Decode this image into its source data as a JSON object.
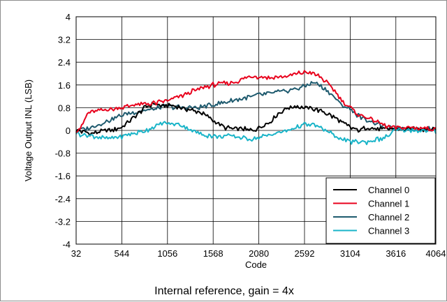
{
  "chart_data": {
    "type": "line",
    "xlabel": "Code",
    "ylabel": "Voltage Output INL (LSB)",
    "caption": "Internal reference, gain = 4x",
    "xlim": [
      32,
      4064
    ],
    "ylim": [
      -4,
      4
    ],
    "x_ticks": [
      32,
      544,
      1056,
      1568,
      2080,
      2592,
      3104,
      3616,
      4064
    ],
    "x_tick_labels": [
      "32",
      "544",
      "1056",
      "1568",
      "2080",
      "2592",
      "3104",
      "3616",
      "4064"
    ],
    "y_ticks": [
      4,
      3.2,
      2.4,
      1.6,
      0.8,
      0,
      -0.8,
      -1.6,
      -2.4,
      -3.2,
      -4
    ],
    "y_tick_labels": [
      "4",
      "3.2",
      "2.4",
      "1.6",
      "0.8",
      "0",
      "-0.8",
      "-1.6",
      "-2.4",
      "-3.2",
      "-4"
    ],
    "grid": true,
    "legend_position": "bottom-right",
    "series": [
      {
        "name": "Channel 0",
        "color": "#000000",
        "x": [
          32,
          200,
          400,
          544,
          700,
          800,
          900,
          1000,
          1056,
          1200,
          1350,
          1450,
          1568,
          1700,
          1800,
          1900,
          2000,
          2080,
          2200,
          2300,
          2400,
          2500,
          2592,
          2700,
          2800,
          2900,
          3000,
          3104,
          3200,
          3300,
          3400,
          3500,
          3616,
          3800,
          4064
        ],
        "y": [
          0.0,
          -0.1,
          0.0,
          0.1,
          0.5,
          0.8,
          0.95,
          0.85,
          0.9,
          0.8,
          0.7,
          0.6,
          0.35,
          0.1,
          0.05,
          0.05,
          0.0,
          0.1,
          0.3,
          0.6,
          0.8,
          0.85,
          0.8,
          0.75,
          0.65,
          0.5,
          0.3,
          0.1,
          0.0,
          0.1,
          0.05,
          0.05,
          0.05,
          0.05,
          0.05
        ]
      },
      {
        "name": "Channel 1",
        "color": "#e8001c",
        "x": [
          32,
          100,
          150,
          200,
          400,
          544,
          700,
          900,
          1056,
          1200,
          1400,
          1568,
          1800,
          2000,
          2080,
          2200,
          2400,
          2592,
          2700,
          2800,
          2900,
          3000,
          3104,
          3200,
          3300,
          3400,
          3500,
          3616,
          3800,
          4064
        ],
        "y": [
          0.0,
          0.15,
          0.55,
          0.65,
          0.75,
          0.8,
          0.9,
          0.95,
          1.05,
          1.2,
          1.45,
          1.6,
          1.7,
          1.9,
          1.9,
          1.85,
          1.9,
          2.05,
          2.0,
          1.8,
          1.5,
          1.1,
          0.8,
          0.55,
          0.45,
          0.3,
          0.15,
          0.1,
          0.1,
          0.05
        ]
      },
      {
        "name": "Channel 2",
        "color": "#1e5a6e",
        "x": [
          32,
          200,
          400,
          544,
          700,
          900,
          1056,
          1200,
          1400,
          1568,
          1800,
          2000,
          2080,
          2200,
          2400,
          2592,
          2700,
          2800,
          2900,
          3000,
          3104,
          3200,
          3300,
          3400,
          3500,
          3616,
          3800,
          4064
        ],
        "y": [
          0.0,
          0.1,
          0.35,
          0.55,
          0.65,
          0.75,
          0.85,
          0.8,
          0.8,
          0.9,
          1.05,
          1.2,
          1.25,
          1.3,
          1.4,
          1.55,
          1.7,
          1.5,
          1.25,
          0.9,
          0.75,
          0.5,
          0.35,
          0.25,
          0.1,
          0.05,
          0.05,
          0.05
        ]
      },
      {
        "name": "Channel 3",
        "color": "#19b4c8",
        "x": [
          32,
          200,
          400,
          544,
          700,
          800,
          900,
          1000,
          1056,
          1200,
          1300,
          1450,
          1568,
          1800,
          2000,
          2080,
          2200,
          2400,
          2592,
          2700,
          2800,
          3000,
          3104,
          3300,
          3500,
          3616,
          3800,
          4064
        ],
        "y": [
          -0.1,
          -0.2,
          -0.3,
          -0.2,
          -0.1,
          0.0,
          0.1,
          0.25,
          0.25,
          0.2,
          0.05,
          -0.15,
          -0.2,
          -0.2,
          -0.3,
          -0.25,
          -0.15,
          0.0,
          0.2,
          0.2,
          0.05,
          -0.3,
          -0.4,
          -0.4,
          -0.25,
          0.0,
          0.0,
          -0.05
        ]
      }
    ]
  }
}
